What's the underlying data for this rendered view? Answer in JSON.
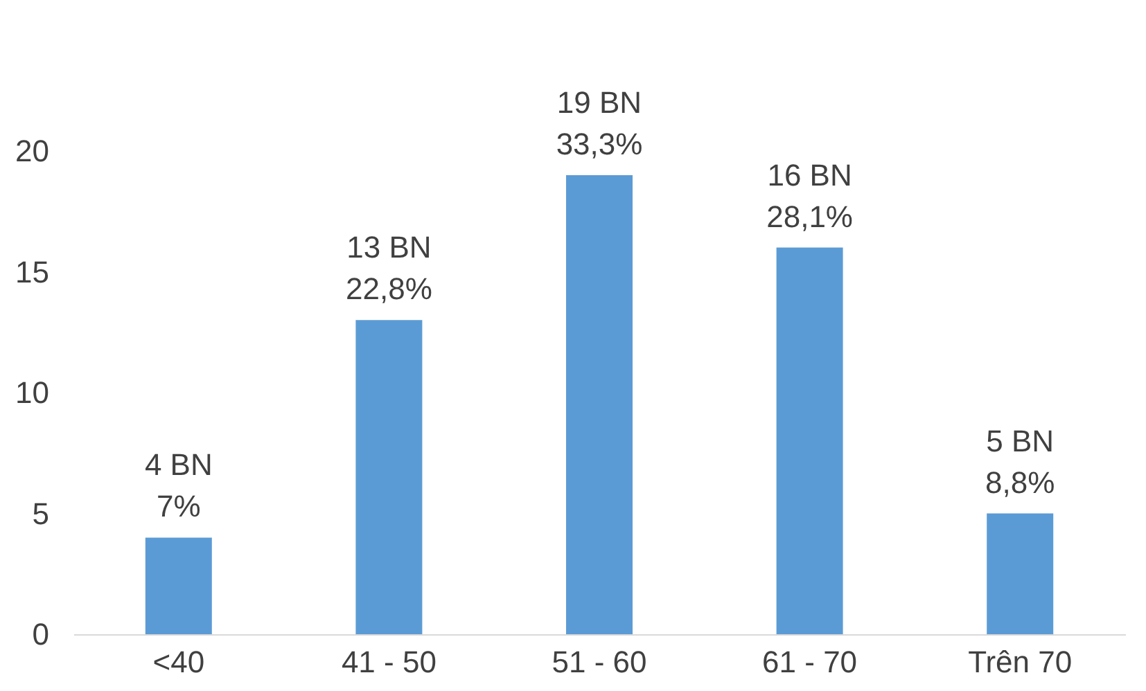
{
  "chart_data": {
    "type": "bar",
    "categories": [
      "<40",
      "41 - 50",
      "51 - 60",
      "61 - 70",
      "Trên 70"
    ],
    "values": [
      4,
      13,
      19,
      16,
      5
    ],
    "value_labels": [
      "4 BN\n7%",
      "13 BN\n22,8%",
      "19 BN\n33,3%",
      "16 BN\n28,1%",
      "5 BN\n8,8%"
    ],
    "color": "#5b9bd5",
    "ylim": [
      0,
      20
    ],
    "yticks": [
      0,
      5,
      10,
      15,
      20
    ],
    "grid": false
  }
}
